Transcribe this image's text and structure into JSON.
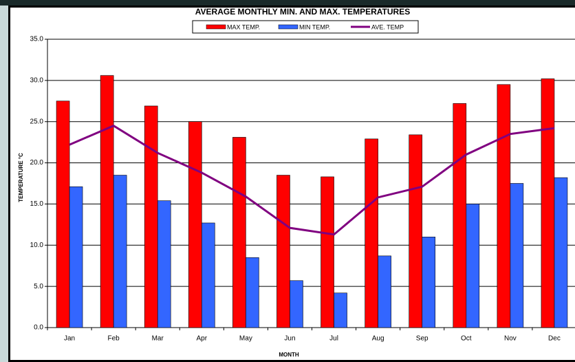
{
  "chart_data": {
    "type": "bar",
    "title": "AVERAGE MONTHLY MIN. AND MAX. TEMPERATURES",
    "x_label": "MONTH",
    "y_label": "TEMPERATURE °C",
    "categories": [
      "Jan",
      "Feb",
      "Mar",
      "Apr",
      "May",
      "Jun",
      "Jul",
      "Aug",
      "Sep",
      "Oct",
      "Nov",
      "Dec"
    ],
    "series": [
      {
        "name": "MAX TEMP.",
        "type": "bar",
        "color": "#ff0000",
        "values": [
          27.5,
          30.6,
          26.9,
          25.0,
          23.1,
          18.5,
          18.3,
          22.9,
          23.4,
          27.2,
          29.5,
          30.2
        ]
      },
      {
        "name": "MIN TEMP.",
        "type": "bar",
        "color": "#3366ff",
        "values": [
          17.1,
          18.5,
          15.4,
          12.7,
          8.5,
          5.7,
          4.2,
          8.7,
          11.0,
          15.0,
          17.5,
          18.2
        ]
      },
      {
        "name": "AVE. TEMP",
        "type": "line",
        "color": "#800080",
        "values": [
          22.2,
          24.5,
          21.2,
          18.8,
          15.9,
          12.1,
          11.3,
          15.8,
          17.1,
          21.0,
          23.5,
          24.2
        ]
      }
    ],
    "ylim": [
      0,
      35
    ],
    "yticks": [
      {
        "value": 0,
        "label": "0.0"
      },
      {
        "value": 5,
        "label": "5.0"
      },
      {
        "value": 10,
        "label": "10.0"
      },
      {
        "value": 15,
        "label": "15.0"
      },
      {
        "value": 20,
        "label": "20.0"
      },
      {
        "value": 25,
        "label": "25.0"
      },
      {
        "value": 30,
        "label": "30.0"
      },
      {
        "value": 35,
        "label": "35.0"
      }
    ],
    "grid": true
  }
}
